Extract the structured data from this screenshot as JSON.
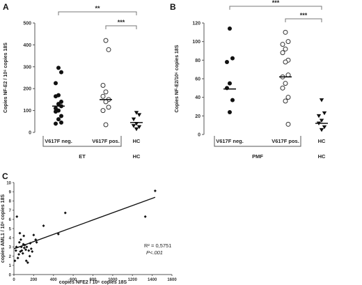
{
  "chart_data": [
    {
      "panel": "A",
      "type": "scatter",
      "ylabel": "Copies NF-E2 / 10⁶ copies 18S",
      "ylim": [
        0,
        500
      ],
      "yticks": [
        0,
        100,
        200,
        300,
        400,
        500
      ],
      "categories": [
        "V617F neg.",
        "V617F pos.",
        "HC"
      ],
      "groups": [
        {
          "label": "ET",
          "spans": [
            "V617F neg.",
            "V617F pos."
          ]
        },
        {
          "label": "HC",
          "spans": [
            "HC"
          ]
        }
      ],
      "series": [
        {
          "marker": "filled-circle",
          "values": [
            295,
            275,
            225,
            170,
            165,
            140,
            130,
            120,
            110,
            100,
            95,
            75,
            60,
            45,
            40
          ],
          "median": 120
        },
        {
          "marker": "open-circle",
          "values": [
            420,
            378,
            215,
            185,
            165,
            150,
            140,
            115,
            100,
            35
          ],
          "median": 150
        },
        {
          "marker": "filled-triangle",
          "values": [
            90,
            80,
            60,
            40,
            30,
            25,
            15
          ],
          "median": 45
        }
      ],
      "significance": [
        {
          "from": "V617F neg.",
          "to": "HC",
          "label": "**"
        },
        {
          "from": "V617F pos.",
          "to": "HC",
          "label": "***"
        }
      ]
    },
    {
      "panel": "B",
      "type": "scatter",
      "ylabel": "Copies NF-E2/10⁶ copies 18S",
      "ylim": [
        0,
        120
      ],
      "yticks": [
        0,
        20,
        40,
        60,
        80,
        100,
        120
      ],
      "categories": [
        "V617F neg.",
        "V617F pos.",
        "HC"
      ],
      "groups": [
        {
          "label": "PMF",
          "spans": [
            "V617F neg.",
            "V617F pos."
          ]
        },
        {
          "label": "HC",
          "spans": [
            "HC"
          ]
        }
      ],
      "series": [
        {
          "marker": "filled-circle",
          "values": [
            114,
            82,
            78,
            55,
            50,
            37,
            24
          ],
          "median": 49
        },
        {
          "marker": "open-circle",
          "values": [
            110,
            100,
            97,
            92,
            88,
            80,
            78,
            64,
            62,
            55,
            50,
            40,
            36,
            11
          ],
          "median": 62
        },
        {
          "marker": "filled-triangle",
          "values": [
            37,
            23,
            20,
            15,
            12,
            8,
            5
          ],
          "median": 12
        }
      ],
      "significance": [
        {
          "from": "V617F neg.",
          "to": "HC",
          "label": "***"
        },
        {
          "from": "V617F pos.",
          "to": "HC",
          "label": "***"
        }
      ]
    },
    {
      "panel": "C",
      "type": "scatter",
      "xlabel": "copies NFE2 / 10⁶ copies 18S",
      "ylabel": "copies AML1 / 10⁶ copies 18S",
      "xlim": [
        0,
        1600
      ],
      "ylim": [
        0,
        10
      ],
      "xticks": [
        0,
        200,
        400,
        600,
        800,
        1000,
        1200,
        1400,
        1600
      ],
      "yticks": [
        0,
        1,
        2,
        3,
        4,
        5,
        6,
        7,
        8,
        9,
        10
      ],
      "points": [
        [
          10,
          1.5
        ],
        [
          20,
          2.6
        ],
        [
          25,
          3.0
        ],
        [
          30,
          6.3
        ],
        [
          40,
          1.8
        ],
        [
          50,
          2.2
        ],
        [
          55,
          3.5
        ],
        [
          60,
          4.5
        ],
        [
          65,
          2.5
        ],
        [
          70,
          3.8
        ],
        [
          75,
          3.0
        ],
        [
          80,
          2.6
        ],
        [
          90,
          2.3
        ],
        [
          95,
          3.3
        ],
        [
          100,
          4.2
        ],
        [
          105,
          2.9
        ],
        [
          110,
          3.2
        ],
        [
          120,
          2.7
        ],
        [
          125,
          1.5
        ],
        [
          130,
          3.0
        ],
        [
          140,
          1.3
        ],
        [
          150,
          2.6
        ],
        [
          160,
          2.0
        ],
        [
          165,
          3.4
        ],
        [
          175,
          2.8
        ],
        [
          185,
          2.5
        ],
        [
          200,
          4.3
        ],
        [
          220,
          3.8
        ],
        [
          230,
          3.5
        ],
        [
          300,
          5.3
        ],
        [
          450,
          4.4
        ],
        [
          520,
          6.7
        ],
        [
          1330,
          6.3
        ],
        [
          1430,
          9.1
        ]
      ],
      "trendline": {
        "x": [
          0,
          1430
        ],
        "y": [
          2.8,
          8.4
        ]
      },
      "annotations": [
        "R² = 0,5751",
        "P<.001"
      ]
    }
  ],
  "panel_labels": [
    "A",
    "B",
    "C"
  ],
  "colors": {
    "ink": "#111111",
    "axis": "#555555"
  }
}
